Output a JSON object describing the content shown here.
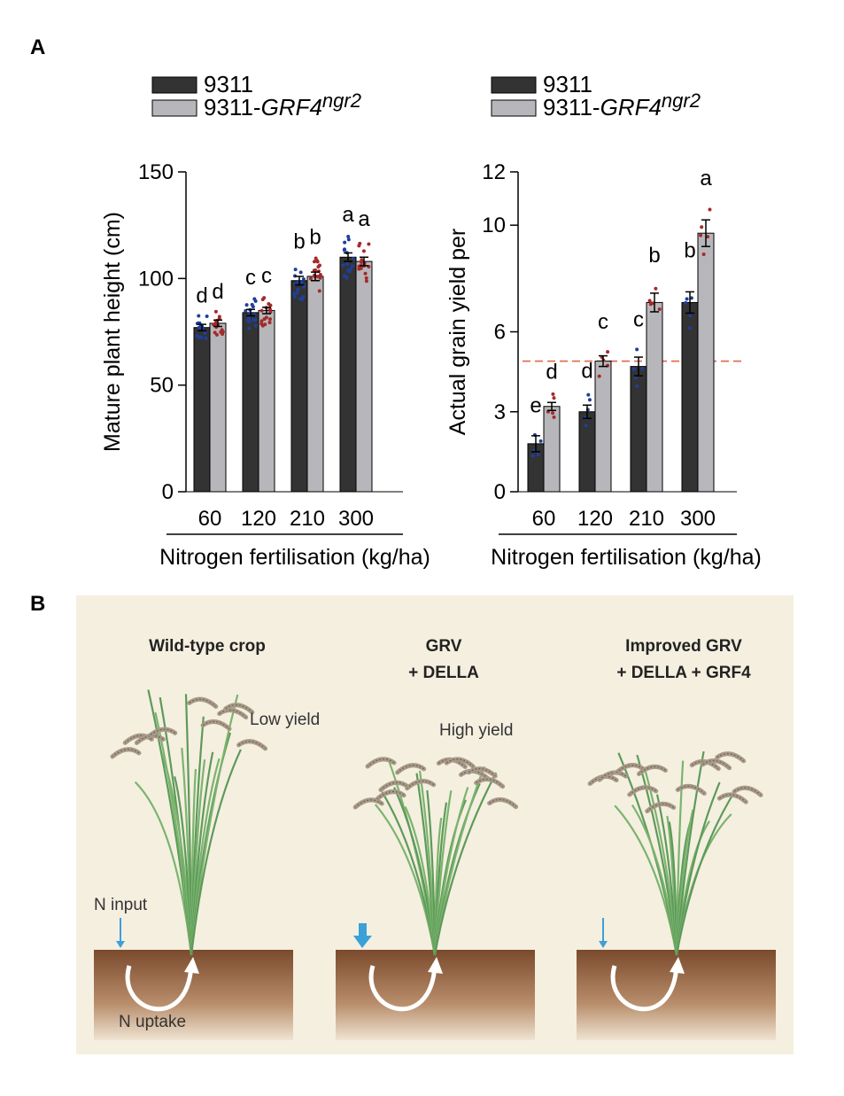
{
  "panel_labels": {
    "a": "A",
    "b": "B"
  },
  "chart_data": [
    {
      "type": "bar",
      "legend": {
        "placement": "top-left",
        "entries": [
          {
            "name": "9311",
            "color": "#333333"
          },
          {
            "name_prefix": "9311-",
            "name_italic": "GRF4",
            "name_sup": "ngr2",
            "color": "#b7b7bb"
          }
        ]
      },
      "categories": [
        "60",
        "120",
        "210",
        "300"
      ],
      "series": [
        {
          "name": "9311",
          "values": [
            77,
            84,
            99,
            110
          ],
          "errors": [
            1.5,
            1.5,
            2,
            2
          ],
          "letters": [
            "d",
            "c",
            "b",
            "a"
          ],
          "dot_color": "#1f3f9a"
        },
        {
          "name": "9311-GRF4ngr2",
          "values": [
            79,
            85,
            101,
            108
          ],
          "errors": [
            1.5,
            1.5,
            2,
            2
          ],
          "letters": [
            "d",
            "c",
            "b",
            "a"
          ],
          "dot_color": "#a52a2a"
        }
      ],
      "ylabel": "Mature plant height (cm)",
      "xlabel": "Nitrogen fertilisation (kg/ha)",
      "ylim": [
        0,
        150
      ],
      "yticks": [
        0,
        50,
        100,
        150
      ]
    },
    {
      "type": "bar",
      "legend": {
        "placement": "top-left",
        "entries": [
          {
            "name": "9311",
            "color": "#333333"
          },
          {
            "name_prefix": "9311-",
            "name_italic": "GRF4",
            "name_sup": "ngr2",
            "color": "#b7b7bb"
          }
        ]
      },
      "categories": [
        "60",
        "120",
        "210",
        "300"
      ],
      "series": [
        {
          "name": "9311",
          "values": [
            1.8,
            3.0,
            4.7,
            7.1
          ],
          "errors": [
            0.3,
            0.25,
            0.35,
            0.4
          ],
          "letters": [
            "e",
            "d",
            "c",
            "b"
          ],
          "dot_color": "#1f3f9a"
        },
        {
          "name": "9311-GRF4ngr2",
          "values": [
            3.2,
            4.9,
            7.1,
            9.7
          ],
          "errors": [
            0.15,
            0.2,
            0.35,
            0.5
          ],
          "letters": [
            "d",
            "c",
            "b",
            "a"
          ],
          "dot_color": "#a52a2a"
        }
      ],
      "reference_line": {
        "y": 4.9,
        "color": "#e07050"
      },
      "ylabel": "Actual grain yield per",
      "xlabel": "Nitrogen fertilisation (kg/ha)",
      "ylim": [
        0,
        12
      ],
      "yticks": [
        0,
        3,
        6,
        10,
        12
      ]
    }
  ],
  "illustration": {
    "background": "#f5efe0",
    "plants": [
      {
        "title_lines": [
          "Wild-type crop"
        ],
        "yield_label": "Low yield",
        "input_label": "N input",
        "uptake_label": "N uptake",
        "arrow": "thin"
      },
      {
        "title_lines": [
          "GRV",
          "+ DELLA"
        ],
        "yield_label": "High yield",
        "arrow": "thick"
      },
      {
        "title_lines": [
          "Improved GRV",
          "+ DELLA + GRF4"
        ],
        "arrow": "thin"
      }
    ]
  }
}
